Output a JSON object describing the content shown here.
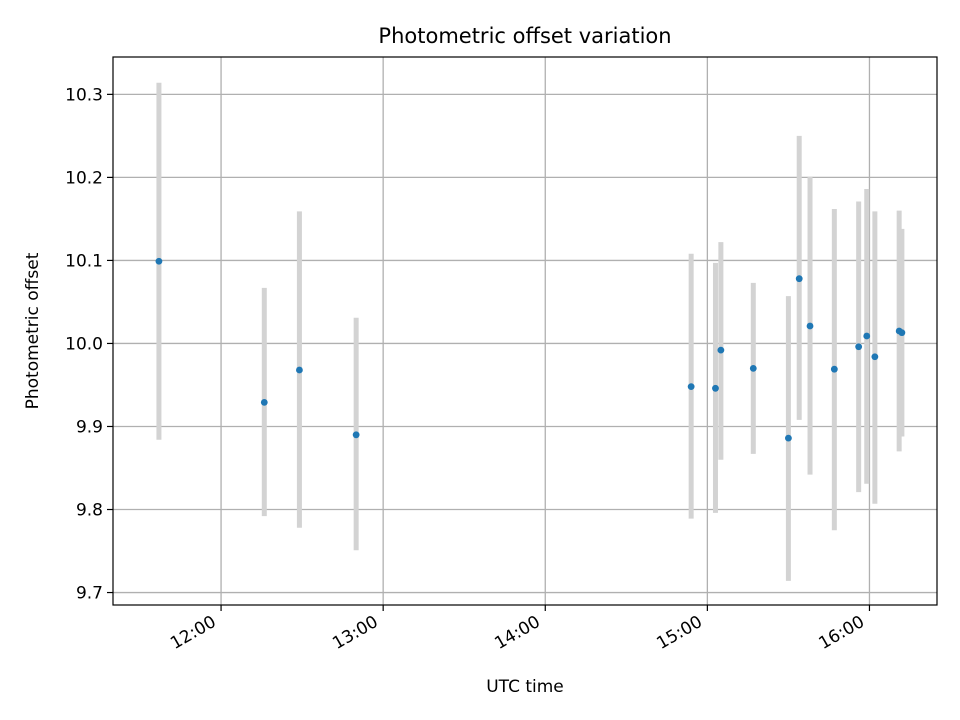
{
  "chart_data": {
    "type": "scatter",
    "title": "Photometric offset variation",
    "xlabel": "UTC time",
    "ylabel": "Photometric offset",
    "xlim": [
      "11:20",
      "16:25"
    ],
    "ylim": [
      9.685,
      10.345
    ],
    "grid": true,
    "x_ticks": [
      "12:00",
      "13:00",
      "14:00",
      "15:00",
      "16:00"
    ],
    "y_ticks": [
      "9.7",
      "9.8",
      "9.9",
      "10.0",
      "10.1",
      "10.2",
      "10.3"
    ],
    "colors": {
      "point": "#1f77b4",
      "errorbar": "#d3d3d3",
      "grid": "#b0b0b0"
    },
    "points": [
      {
        "x": "11:37",
        "y": 10.099,
        "ylow": 9.884,
        "yhigh": 10.314
      },
      {
        "x": "12:16",
        "y": 9.929,
        "ylow": 9.792,
        "yhigh": 10.067
      },
      {
        "x": "12:29",
        "y": 9.968,
        "ylow": 9.778,
        "yhigh": 10.159
      },
      {
        "x": "12:50",
        "y": 9.89,
        "ylow": 9.751,
        "yhigh": 10.031
      },
      {
        "x": "14:54",
        "y": 9.948,
        "ylow": 9.789,
        "yhigh": 10.108
      },
      {
        "x": "15:03",
        "y": 9.946,
        "ylow": 9.796,
        "yhigh": 10.097
      },
      {
        "x": "15:05",
        "y": 9.992,
        "ylow": 9.86,
        "yhigh": 10.122
      },
      {
        "x": "15:17",
        "y": 9.97,
        "ylow": 9.867,
        "yhigh": 10.073
      },
      {
        "x": "15:30",
        "y": 9.886,
        "ylow": 9.714,
        "yhigh": 10.057
      },
      {
        "x": "15:34",
        "y": 10.078,
        "ylow": 9.908,
        "yhigh": 10.25
      },
      {
        "x": "15:38",
        "y": 10.021,
        "ylow": 9.842,
        "yhigh": 10.201
      },
      {
        "x": "15:47",
        "y": 9.969,
        "ylow": 9.775,
        "yhigh": 10.162
      },
      {
        "x": "15:56",
        "y": 9.996,
        "ylow": 9.821,
        "yhigh": 10.171
      },
      {
        "x": "15:59",
        "y": 10.009,
        "ylow": 9.831,
        "yhigh": 10.186
      },
      {
        "x": "16:02",
        "y": 9.984,
        "ylow": 9.807,
        "yhigh": 10.159
      },
      {
        "x": "16:11",
        "y": 10.015,
        "ylow": 9.87,
        "yhigh": 10.16
      },
      {
        "x": "16:12",
        "y": 10.013,
        "ylow": 9.888,
        "yhigh": 10.138
      }
    ]
  }
}
